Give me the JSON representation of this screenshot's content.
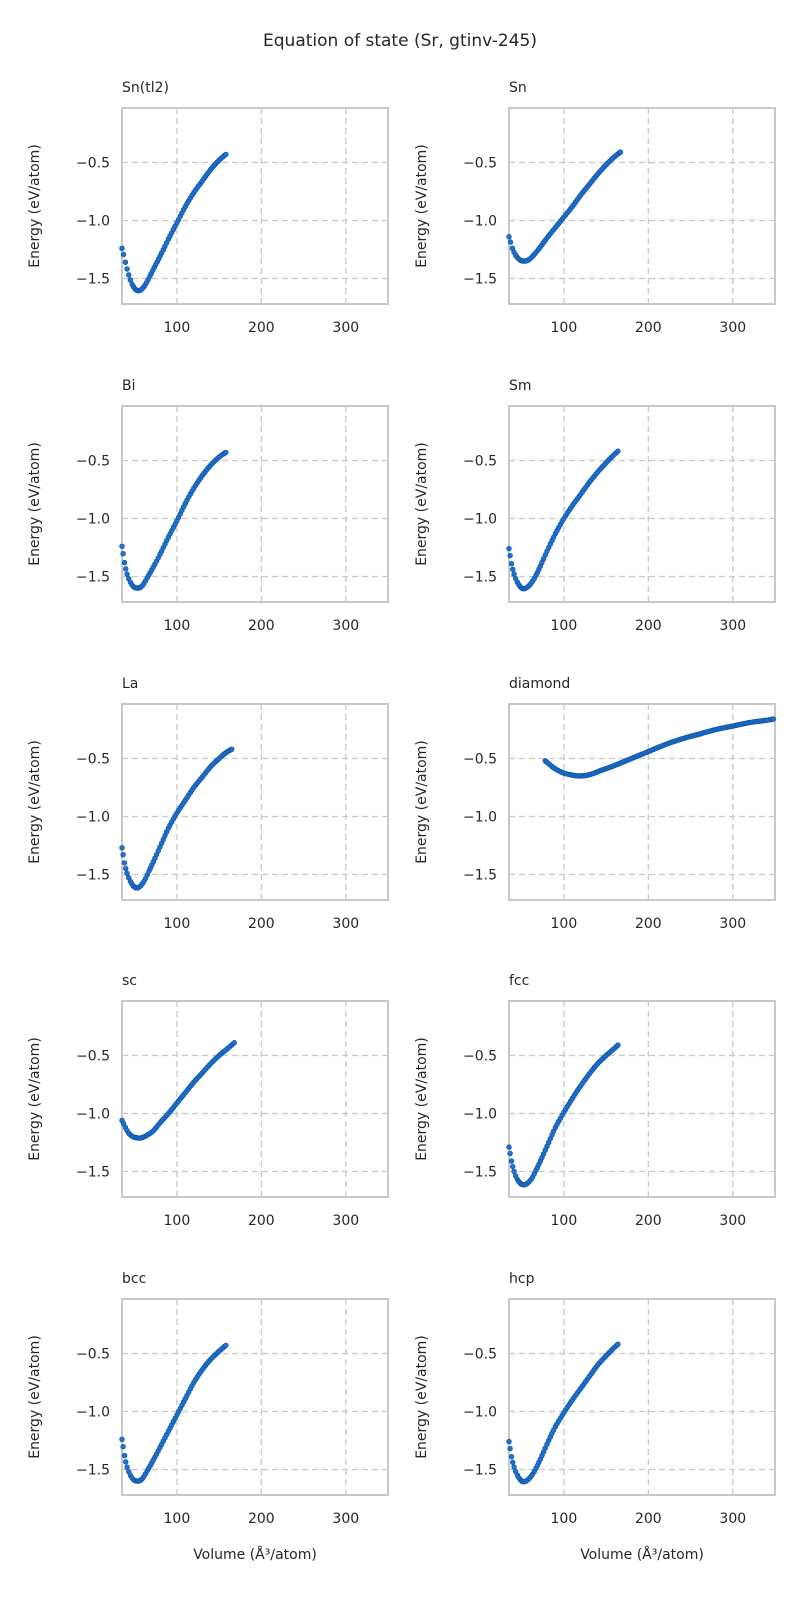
{
  "chart_data": {
    "type": "scatter",
    "title": "Equation of state (Sr, gtinv-245)",
    "xlabel": "Volume (Å³/atom)",
    "ylabel": "Energy (eV/atom)",
    "xlim": [
      35,
      350
    ],
    "ylim": [
      -1.72,
      -0.03
    ],
    "xticks": [
      100,
      200,
      300
    ],
    "yticks": [
      -0.5,
      -1.0,
      -1.5
    ],
    "xtick_labels": [
      "100",
      "200",
      "300"
    ],
    "ytick_labels": [
      "−0.5",
      "−1.0",
      "−1.5"
    ],
    "grid": true,
    "marker_color": "#1f72d1",
    "panels": [
      {
        "title": "Sn(tl2)",
        "points": [
          [
            35,
            -1.24
          ],
          [
            39,
            -1.36
          ],
          [
            43,
            -1.47
          ],
          [
            47,
            -1.55
          ],
          [
            52,
            -1.6
          ],
          [
            57,
            -1.6
          ],
          [
            62,
            -1.56
          ],
          [
            68,
            -1.48
          ],
          [
            75,
            -1.38
          ],
          [
            82,
            -1.28
          ],
          [
            90,
            -1.16
          ],
          [
            100,
            -1.02
          ],
          [
            110,
            -0.88
          ],
          [
            120,
            -0.76
          ],
          [
            130,
            -0.66
          ],
          [
            140,
            -0.56
          ],
          [
            150,
            -0.48
          ],
          [
            158,
            -0.43
          ]
        ]
      },
      {
        "title": "Sn",
        "points": [
          [
            35,
            -1.14
          ],
          [
            39,
            -1.24
          ],
          [
            43,
            -1.3
          ],
          [
            48,
            -1.34
          ],
          [
            53,
            -1.35
          ],
          [
            58,
            -1.34
          ],
          [
            64,
            -1.3
          ],
          [
            72,
            -1.23
          ],
          [
            80,
            -1.15
          ],
          [
            90,
            -1.06
          ],
          [
            100,
            -0.97
          ],
          [
            110,
            -0.88
          ],
          [
            120,
            -0.78
          ],
          [
            130,
            -0.69
          ],
          [
            140,
            -0.6
          ],
          [
            150,
            -0.52
          ],
          [
            160,
            -0.45
          ],
          [
            167,
            -0.41
          ]
        ]
      },
      {
        "title": "Bi",
        "points": [
          [
            35,
            -1.24
          ],
          [
            38,
            -1.38
          ],
          [
            41,
            -1.48
          ],
          [
            45,
            -1.55
          ],
          [
            49,
            -1.59
          ],
          [
            54,
            -1.6
          ],
          [
            59,
            -1.58
          ],
          [
            65,
            -1.51
          ],
          [
            72,
            -1.42
          ],
          [
            80,
            -1.31
          ],
          [
            90,
            -1.16
          ],
          [
            100,
            -1.02
          ],
          [
            110,
            -0.87
          ],
          [
            120,
            -0.74
          ],
          [
            130,
            -0.63
          ],
          [
            140,
            -0.54
          ],
          [
            150,
            -0.47
          ],
          [
            158,
            -0.43
          ]
        ]
      },
      {
        "title": "Sm",
        "points": [
          [
            35,
            -1.26
          ],
          [
            38,
            -1.39
          ],
          [
            41,
            -1.48
          ],
          [
            45,
            -1.55
          ],
          [
            50,
            -1.6
          ],
          [
            55,
            -1.6
          ],
          [
            61,
            -1.56
          ],
          [
            67,
            -1.49
          ],
          [
            74,
            -1.38
          ],
          [
            82,
            -1.25
          ],
          [
            90,
            -1.13
          ],
          [
            100,
            -1.0
          ],
          [
            110,
            -0.89
          ],
          [
            120,
            -0.79
          ],
          [
            130,
            -0.69
          ],
          [
            140,
            -0.6
          ],
          [
            150,
            -0.52
          ],
          [
            158,
            -0.46
          ],
          [
            164,
            -0.42
          ]
        ]
      },
      {
        "title": "La",
        "points": [
          [
            35,
            -1.27
          ],
          [
            38,
            -1.4
          ],
          [
            41,
            -1.49
          ],
          [
            45,
            -1.56
          ],
          [
            50,
            -1.61
          ],
          [
            55,
            -1.61
          ],
          [
            61,
            -1.56
          ],
          [
            67,
            -1.47
          ],
          [
            74,
            -1.36
          ],
          [
            82,
            -1.23
          ],
          [
            90,
            -1.1
          ],
          [
            100,
            -0.97
          ],
          [
            110,
            -0.86
          ],
          [
            120,
            -0.75
          ],
          [
            130,
            -0.66
          ],
          [
            140,
            -0.57
          ],
          [
            150,
            -0.5
          ],
          [
            158,
            -0.45
          ],
          [
            165,
            -0.42
          ]
        ]
      },
      {
        "title": "diamond",
        "points": [
          [
            78,
            -0.52
          ],
          [
            88,
            -0.58
          ],
          [
            98,
            -0.62
          ],
          [
            108,
            -0.64
          ],
          [
            118,
            -0.65
          ],
          [
            130,
            -0.64
          ],
          [
            145,
            -0.6
          ],
          [
            160,
            -0.56
          ],
          [
            180,
            -0.5
          ],
          [
            200,
            -0.44
          ],
          [
            220,
            -0.38
          ],
          [
            240,
            -0.33
          ],
          [
            260,
            -0.29
          ],
          [
            280,
            -0.25
          ],
          [
            300,
            -0.22
          ],
          [
            320,
            -0.19
          ],
          [
            340,
            -0.17
          ],
          [
            348,
            -0.16
          ]
        ]
      },
      {
        "title": "sc",
        "points": [
          [
            35,
            -1.06
          ],
          [
            39,
            -1.12
          ],
          [
            43,
            -1.17
          ],
          [
            48,
            -1.2
          ],
          [
            53,
            -1.21
          ],
          [
            58,
            -1.21
          ],
          [
            64,
            -1.19
          ],
          [
            72,
            -1.15
          ],
          [
            80,
            -1.08
          ],
          [
            90,
            -1.0
          ],
          [
            100,
            -0.91
          ],
          [
            110,
            -0.82
          ],
          [
            120,
            -0.73
          ],
          [
            130,
            -0.65
          ],
          [
            140,
            -0.57
          ],
          [
            150,
            -0.5
          ],
          [
            160,
            -0.44
          ],
          [
            168,
            -0.39
          ]
        ]
      },
      {
        "title": "fcc",
        "points": [
          [
            35,
            -1.29
          ],
          [
            38,
            -1.41
          ],
          [
            41,
            -1.5
          ],
          [
            45,
            -1.57
          ],
          [
            50,
            -1.61
          ],
          [
            55,
            -1.61
          ],
          [
            61,
            -1.57
          ],
          [
            67,
            -1.49
          ],
          [
            74,
            -1.38
          ],
          [
            82,
            -1.25
          ],
          [
            90,
            -1.12
          ],
          [
            100,
            -0.99
          ],
          [
            110,
            -0.87
          ],
          [
            120,
            -0.76
          ],
          [
            130,
            -0.66
          ],
          [
            140,
            -0.57
          ],
          [
            150,
            -0.5
          ],
          [
            158,
            -0.45
          ],
          [
            164,
            -0.41
          ]
        ]
      },
      {
        "title": "bcc",
        "points": [
          [
            35,
            -1.24
          ],
          [
            38,
            -1.38
          ],
          [
            41,
            -1.48
          ],
          [
            45,
            -1.55
          ],
          [
            49,
            -1.59
          ],
          [
            54,
            -1.6
          ],
          [
            59,
            -1.58
          ],
          [
            65,
            -1.51
          ],
          [
            72,
            -1.42
          ],
          [
            80,
            -1.31
          ],
          [
            90,
            -1.17
          ],
          [
            100,
            -1.03
          ],
          [
            110,
            -0.89
          ],
          [
            120,
            -0.75
          ],
          [
            130,
            -0.64
          ],
          [
            140,
            -0.55
          ],
          [
            150,
            -0.48
          ],
          [
            158,
            -0.43
          ]
        ]
      },
      {
        "title": "hcp",
        "points": [
          [
            35,
            -1.26
          ],
          [
            38,
            -1.39
          ],
          [
            41,
            -1.48
          ],
          [
            45,
            -1.55
          ],
          [
            50,
            -1.6
          ],
          [
            55,
            -1.6
          ],
          [
            61,
            -1.56
          ],
          [
            67,
            -1.49
          ],
          [
            74,
            -1.38
          ],
          [
            82,
            -1.25
          ],
          [
            90,
            -1.13
          ],
          [
            100,
            -1.01
          ],
          [
            110,
            -0.9
          ],
          [
            120,
            -0.8
          ],
          [
            130,
            -0.7
          ],
          [
            140,
            -0.6
          ],
          [
            150,
            -0.52
          ],
          [
            158,
            -0.46
          ],
          [
            164,
            -0.42
          ]
        ]
      }
    ]
  }
}
